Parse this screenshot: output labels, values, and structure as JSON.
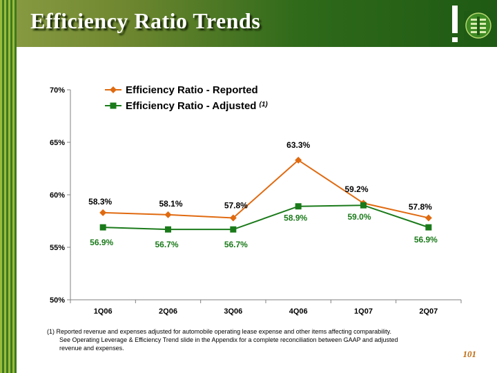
{
  "title": "Efficiency Ratio Trends",
  "footnote": {
    "line1": "(1) Reported revenue and expenses adjusted for automobile operating lease expense and other items affecting comparability.",
    "line2": "See Operating Leverage & Efficiency Trend slide in the Appendix for a complete reconciliation between GAAP and adjusted",
    "line3": "revenue and expenses."
  },
  "page_number": "101",
  "colors": {
    "reported": "#e06a10",
    "adjusted": "#1a7a1a",
    "header_green": "#2f6a1a"
  },
  "icons": [
    "exclamation-mark",
    "corporate-logo"
  ],
  "chart_data": {
    "type": "line",
    "categories": [
      "1Q06",
      "2Q06",
      "3Q06",
      "4Q06",
      "1Q07",
      "2Q07"
    ],
    "y_tick_labels": [
      "50%",
      "55%",
      "60%",
      "65%",
      "70%"
    ],
    "ylim": [
      50,
      70
    ],
    "grid": false,
    "legend_position": "top-center",
    "series": [
      {
        "name": "Efficiency Ratio - Reported",
        "values": [
          58.3,
          58.1,
          57.8,
          63.3,
          59.2,
          57.8
        ],
        "labels": [
          "58.3%",
          "58.1%",
          "57.8%",
          "63.3%",
          "59.2%",
          "57.8%"
        ],
        "marker": "diamond"
      },
      {
        "name": "Efficiency Ratio - Adjusted",
        "name_suffix": "(1)",
        "values": [
          56.9,
          56.7,
          56.7,
          58.9,
          59.0,
          56.9
        ],
        "labels": [
          "56.9%",
          "56.7%",
          "56.7%",
          "58.9%",
          "59.0%",
          "56.9%"
        ],
        "marker": "square"
      }
    ]
  }
}
